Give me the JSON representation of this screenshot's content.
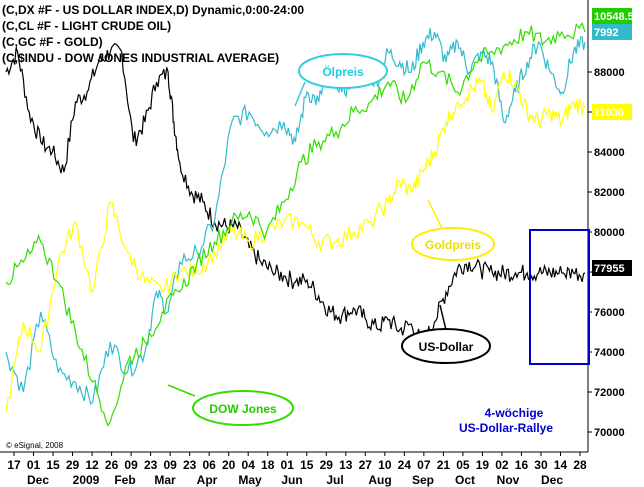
{
  "legend": [
    "(C,DX #F - US DOLLAR INDEX,D) Dynamic,0:00-24:00",
    "(C,CL #F - LIGHT CRUDE OIL)",
    "(C,GC #F - GOLD)",
    "(C,$INDU - DOW JONES INDUSTRIAL AVERAGE)"
  ],
  "copyright": "© eSignal, 2008",
  "annotations": {
    "oil": "Ölpreis",
    "gold": "Goldpreis",
    "dollar": "US-Dollar",
    "dow": "DOW Jones",
    "rally_line1": "4-wöchige",
    "rally_line2": "US-Dollar-Rallye"
  },
  "colors": {
    "dollar": "#000000",
    "oil": "#33bbcc",
    "gold": "#ffff00",
    "dow": "#33dd00",
    "rally_box": "#0000cc",
    "oil_badge": "#33bbcc",
    "gold_badge": "#ffff00",
    "dow_badge": "#22cc00",
    "dollar_badge": "#000000"
  },
  "chart_data": {
    "type": "line",
    "y_ticks": [
      "88000",
      "86000",
      "84000",
      "82000",
      "80000",
      "78000",
      "76000",
      "74000",
      "72000",
      "70000"
    ],
    "ylim": [
      69000,
      91000
    ],
    "x_ticks": [
      "17",
      "01",
      "15",
      "29",
      "12",
      "26",
      "09",
      "23",
      "09",
      "23",
      "06",
      "20",
      "04",
      "18",
      "01",
      "15",
      "29",
      "13",
      "27",
      "10",
      "24",
      "07",
      "21",
      "05",
      "19",
      "02",
      "16",
      "30",
      "14",
      "28"
    ],
    "x_months": [
      "Dec",
      "2009",
      "Feb",
      "Mar",
      "Apr",
      "May",
      "Jun",
      "Jul",
      "Aug",
      "Sep",
      "Oct",
      "Nov",
      "Dec"
    ],
    "last_values": {
      "dow": "10548.5",
      "oil": "7992",
      "gold": "11036",
      "dollar": "77955"
    },
    "series": [
      {
        "key": "dollar",
        "x": [
          0,
          2,
          4,
          6,
          8,
          10,
          12,
          14,
          16,
          18,
          20,
          22,
          24,
          26,
          28,
          29,
          30,
          32,
          34,
          36,
          38,
          40,
          42,
          44,
          46,
          48,
          50,
          52,
          54,
          56,
          58,
          60,
          62,
          64,
          66,
          68,
          70,
          72,
          74,
          76,
          78,
          80,
          82,
          84,
          86,
          88,
          90,
          92,
          94,
          96,
          98,
          100
        ],
        "values": [
          88000,
          89000,
          86000,
          84500,
          84000,
          83000,
          86500,
          87000,
          88500,
          89000,
          89000,
          84500,
          85500,
          87500,
          88000,
          85500,
          83500,
          82000,
          81500,
          80500,
          80300,
          80200,
          79200,
          78500,
          78000,
          77800,
          77500,
          77600,
          76800,
          76000,
          75800,
          76200,
          75700,
          75200,
          75600,
          75100,
          75400,
          74400,
          75500,
          77000,
          78200,
          78500,
          78100,
          77955,
          77955,
          77955,
          77955,
          77955,
          77955,
          77955,
          77955,
          77955
        ]
      },
      {
        "key": "oil",
        "x": [
          0,
          3,
          6,
          9,
          12,
          15,
          18,
          21,
          24,
          26,
          28,
          30,
          33,
          36,
          39,
          42,
          45,
          48,
          50,
          52,
          54,
          56,
          58,
          60,
          62,
          64,
          66,
          68,
          70,
          72,
          74,
          76,
          78,
          80,
          82,
          84,
          86,
          88,
          90,
          92,
          94,
          96,
          98,
          100
        ],
        "values": [
          74000,
          72000,
          76000,
          73000,
          72500,
          71500,
          74500,
          73000,
          74000,
          77000,
          76000,
          78500,
          79000,
          80500,
          85500,
          86000,
          85000,
          85500,
          84500,
          87000,
          86500,
          88500,
          87000,
          87500,
          88000,
          87500,
          89000,
          88500,
          88000,
          89500,
          90000,
          88500,
          89500,
          88000,
          89000,
          88500,
          85500,
          87000,
          88500,
          89500,
          88000,
          87000,
          89000,
          89500
        ]
      },
      {
        "key": "gold",
        "x": [
          0,
          3,
          6,
          9,
          12,
          15,
          18,
          21,
          24,
          27,
          30,
          33,
          36,
          39,
          42,
          45,
          48,
          51,
          54,
          57,
          60,
          63,
          66,
          68,
          70,
          72,
          74,
          76,
          78,
          80,
          82,
          84,
          86,
          88,
          90,
          92,
          94,
          96,
          98,
          100
        ],
        "values": [
          71000,
          75500,
          74000,
          78500,
          80500,
          77000,
          81500,
          79000,
          77500,
          77000,
          78000,
          78000,
          79000,
          80000,
          79500,
          80000,
          80500,
          80500,
          79500,
          79500,
          80000,
          80500,
          81500,
          82500,
          82000,
          83000,
          84000,
          85500,
          86500,
          87000,
          87500,
          86000,
          88000,
          87500,
          86000,
          85500,
          86000,
          85500,
          86500,
          86200
        ]
      },
      {
        "key": "dow",
        "x": [
          0,
          3,
          6,
          9,
          12,
          15,
          18,
          21,
          24,
          27,
          30,
          33,
          36,
          39,
          42,
          45,
          48,
          51,
          54,
          57,
          60,
          63,
          66,
          69,
          72,
          75,
          78,
          81,
          84,
          87,
          90,
          93,
          96,
          100
        ],
        "values": [
          77500,
          78500,
          79500,
          77500,
          75000,
          72500,
          70500,
          73500,
          74500,
          76000,
          77000,
          78500,
          79500,
          80500,
          81000,
          80000,
          81500,
          83500,
          84500,
          85000,
          86000,
          86500,
          87500,
          86500,
          88500,
          88000,
          87000,
          88500,
          89000,
          89500,
          90000,
          89500,
          90000,
          90000
        ]
      }
    ]
  }
}
